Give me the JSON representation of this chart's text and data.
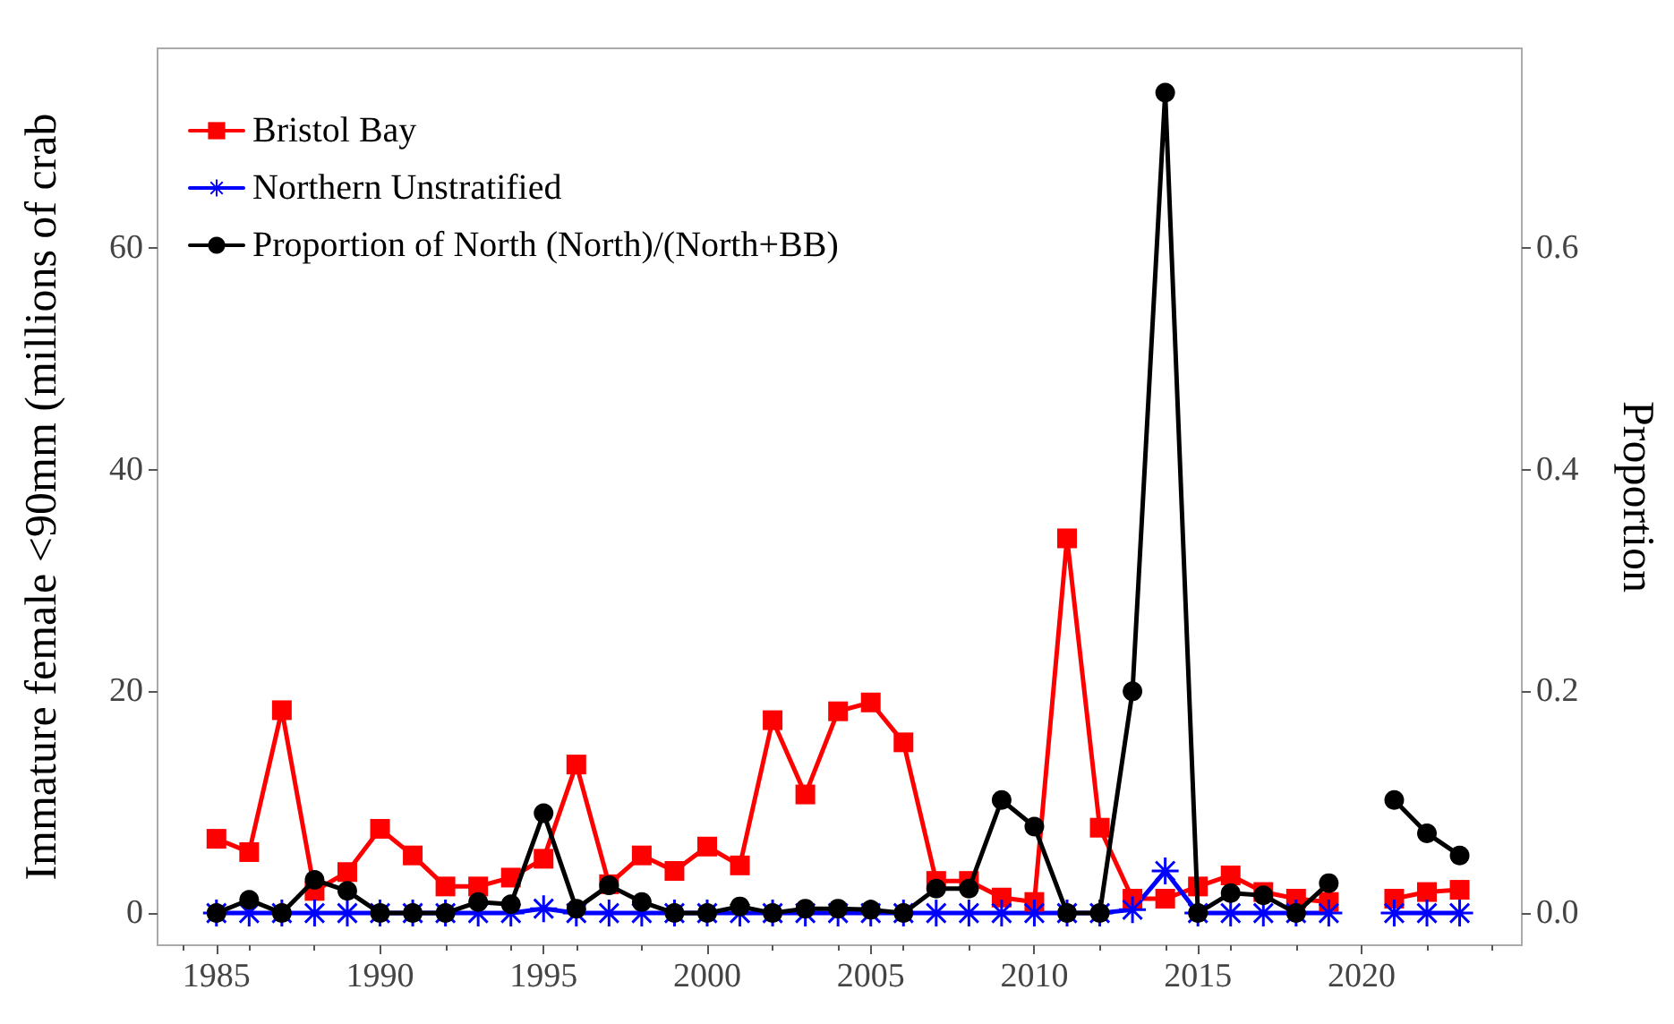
{
  "chart_data": {
    "type": "line",
    "ylabel": "Immature female <90mm (millions of crab",
    "y2label": "Proportion",
    "x": [
      1985,
      1986,
      1987,
      1988,
      1989,
      1990,
      1991,
      1992,
      1993,
      1994,
      1995,
      1996,
      1997,
      1998,
      1999,
      2000,
      2001,
      2002,
      2003,
      2004,
      2005,
      2006,
      2007,
      2008,
      2009,
      2010,
      2011,
      2012,
      2013,
      2014,
      2015,
      2016,
      2017,
      2018,
      2019,
      2020,
      2021,
      2022,
      2023
    ],
    "series": [
      {
        "name": "Bristol Bay",
        "color": "#ff0000",
        "marker": "square",
        "values": [
          6.7,
          5.5,
          18.3,
          2.0,
          3.7,
          7.6,
          5.2,
          2.4,
          2.4,
          3.2,
          4.9,
          13.4,
          2.6,
          5.2,
          3.8,
          6.0,
          4.3,
          17.4,
          10.7,
          18.2,
          19.0,
          15.4,
          2.9,
          2.9,
          1.4,
          1.0,
          33.8,
          7.7,
          1.3,
          1.3,
          2.4,
          3.4,
          1.9,
          1.3,
          1.0,
          null,
          1.3,
          1.9,
          2.1
        ]
      },
      {
        "name": "Northern Unstratified",
        "color": "#0000ff",
        "marker": "star",
        "values": [
          0,
          0,
          0,
          0,
          0,
          0,
          0,
          0,
          0,
          0,
          0.4,
          0,
          0,
          0,
          0,
          0,
          0,
          0,
          0,
          0,
          0,
          0,
          0,
          0,
          0,
          0,
          0,
          0,
          0.3,
          3.8,
          0,
          0,
          0,
          0,
          0,
          null,
          0,
          0,
          0
        ]
      },
      {
        "name": "Proportion of North (North)/(North+BB)",
        "color": "#000000",
        "marker": "circle",
        "axis": "y2",
        "values": [
          0,
          0.012,
          0,
          0.03,
          0.02,
          0,
          0,
          0,
          0.01,
          0.008,
          0.09,
          0.004,
          0.025,
          0.01,
          0,
          0,
          0.006,
          0,
          0.004,
          0.004,
          0.003,
          0,
          0.022,
          0.022,
          0.102,
          0.078,
          0,
          0,
          0.2,
          0.74,
          0,
          0.018,
          0.016,
          0,
          0.027,
          null,
          0.102,
          0.072,
          0.052
        ]
      }
    ],
    "xlim": [
      1983.2,
      2024.9
    ],
    "xticks": [
      1985,
      1990,
      1995,
      2000,
      2005,
      2010,
      2015,
      2020
    ],
    "ylim": [
      -2.9,
      78
    ],
    "yticks": [
      0,
      20,
      40,
      60
    ],
    "y2lim": [
      -0.029,
      0.78
    ],
    "y2ticks": [
      {
        "value": 0,
        "label": "0.0"
      },
      {
        "value": 0.2,
        "label": "0.2"
      },
      {
        "value": 0.4,
        "label": "0.4"
      },
      {
        "value": 0.6,
        "label": "0.6"
      }
    ],
    "legend": "top left",
    "grid": false,
    "line_style": "solid"
  }
}
